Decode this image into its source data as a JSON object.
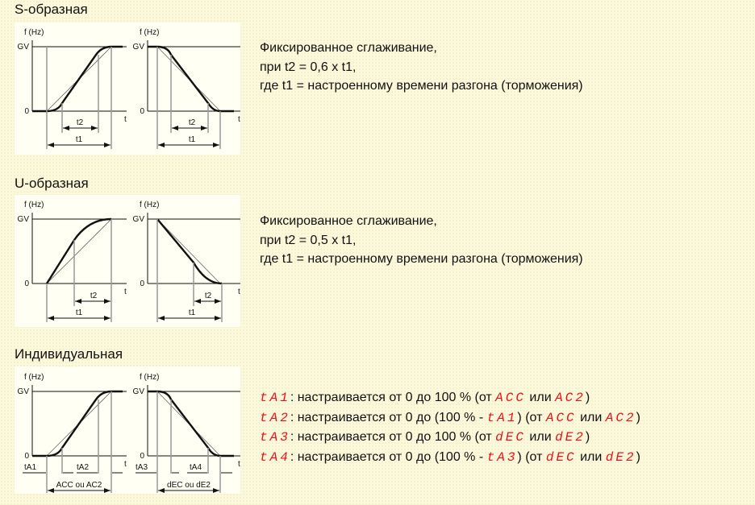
{
  "sections": {
    "s": {
      "title": "S-образная",
      "lines": [
        "Фиксированное сглаживание,",
        "при t2 = 0,6 x t1,",
        "где t1 = настроенному времени разгона (торможения)"
      ]
    },
    "u": {
      "title": "U-образная",
      "lines": [
        "Фиксированное сглаживание,",
        "при t2 = 0,5 x t1,",
        "где t1 = настроенному времени разгона (торможения)"
      ]
    },
    "ind": {
      "title": "Индивидуальная",
      "rows": [
        {
          "code": "tA1",
          "text": ": настраивается от 0 до 100 % (от ",
          "ref1": "ACC",
          "mid": " или ",
          "ref2": "AC2",
          "end": ")"
        },
        {
          "code": "tA2",
          "text": ": настраивается от 0 до (100 % - ",
          "sub": "tA1",
          "text2": ") (от ",
          "ref1": "ACC",
          "mid": " или ",
          "ref2": "AC2",
          "end": ")"
        },
        {
          "code": "tA3",
          "text": ": настраивается от 0 до 100 % (от ",
          "ref1": "dEC",
          "mid": " или ",
          "ref2": "dE2",
          "end": ")"
        },
        {
          "code": "tA4",
          "text": ": настраивается от 0 до (100 % - ",
          "sub": "tA3",
          "text2": ") (от ",
          "ref1": "dEC",
          "mid": " или ",
          "ref2": "dE2",
          "end": ")"
        }
      ]
    }
  },
  "axes": {
    "y_label": "f (Hz)",
    "gv": "GV",
    "zero": "0",
    "x_label": "t"
  },
  "dims": {
    "t1": "t1",
    "t2": "t2",
    "tA1": "tA1",
    "tA2": "tA2",
    "tA3": "tA3",
    "tA4": "tA4",
    "acc": "ACC ou AC2",
    "dec": "dEC ou dE2"
  },
  "colors": {
    "code_red": "#e8141c",
    "background": "#fbf8dc",
    "panel": "#fffff4"
  }
}
